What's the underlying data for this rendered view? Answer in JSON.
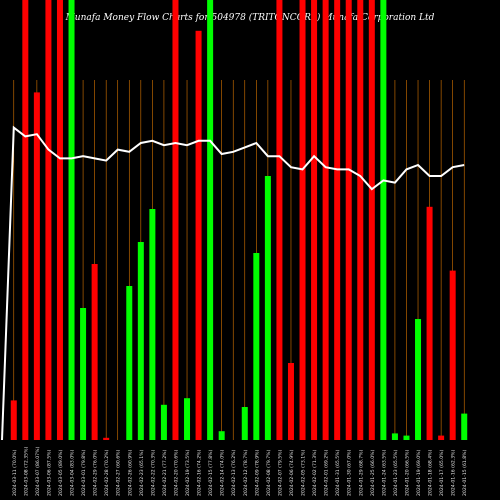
{
  "title": "Munafa Money Flow Charts for 504978 (TRITONCORP) Munafa Corporation Ltd",
  "colors": {
    "background": "#000000",
    "up": "#00ff00",
    "down": "#ff0000",
    "grid": "#ff8c00",
    "flow_line": "#ffffff"
  },
  "chart_data": {
    "type": "bar",
    "title": "Munafa Money Flow Charts for 504978 (TRITONCORP) Munafa Corporation Ltd",
    "ylim": [
      0,
      100
    ],
    "bars": [
      {
        "label": "2024-03-11 (70.0%)",
        "value": 9,
        "color": "red",
        "band": false
      },
      {
        "label": "2024-03-08 (72.35%)",
        "value": 100,
        "color": "red",
        "band": true
      },
      {
        "label": "2024-03-07 (86.07%)",
        "value": 79,
        "color": "red",
        "band": false
      },
      {
        "label": "2024-03-06 (87.5%)",
        "value": 100,
        "color": "red",
        "band": true
      },
      {
        "label": "2024-03-05 (89.0%)",
        "value": 100,
        "color": "red",
        "band": true
      },
      {
        "label": "2024-03-04 (83.0%)",
        "value": 100,
        "color": "green",
        "band": true
      },
      {
        "label": "2024-03-01 (79.8%)",
        "value": 30,
        "color": "green",
        "band": false
      },
      {
        "label": "2024-02-29 (76.0%)",
        "value": 40,
        "color": "red",
        "band": false
      },
      {
        "label": "2024-02-28 (70.2%)",
        "value": 0.5,
        "color": "red",
        "band": false
      },
      {
        "label": "2024-02-27 (60.6%)",
        "value": 0,
        "color": "red",
        "band": false
      },
      {
        "label": "2024-02-26 (60.9%)",
        "value": 35,
        "color": "green",
        "band": false
      },
      {
        "label": "2024-02-23 (65.1%)",
        "value": 45,
        "color": "green",
        "band": false
      },
      {
        "label": "2024-02-22 (70.3%)",
        "value": 52.5,
        "color": "green",
        "band": false
      },
      {
        "label": "2024-02-21 (77.2%)",
        "value": 8,
        "color": "green",
        "band": false
      },
      {
        "label": "2024-02-20 (70.6%)",
        "value": 100,
        "color": "red",
        "band": true
      },
      {
        "label": "2024-02-19 (73.5%)",
        "value": 9.5,
        "color": "green",
        "band": false
      },
      {
        "label": "2024-02-16 (74.2%)",
        "value": 93,
        "color": "red",
        "band": false
      },
      {
        "label": "2024-02-15 (77.8%)",
        "value": 100,
        "color": "green",
        "band": true
      },
      {
        "label": "2024-02-14 (74.0%)",
        "value": 2,
        "color": "green",
        "band": false
      },
      {
        "label": "2024-02-13 (76.2%)",
        "value": 0,
        "color": "red",
        "band": false
      },
      {
        "label": "2024-02-12 (78.7%)",
        "value": 7.5,
        "color": "green",
        "band": false
      },
      {
        "label": "2024-02-09 (78.9%)",
        "value": 42.5,
        "color": "green",
        "band": false
      },
      {
        "label": "2024-02-08 (79.7%)",
        "value": 60,
        "color": "green",
        "band": false
      },
      {
        "label": "2024-02-07 (79.5%)",
        "value": 100,
        "color": "red",
        "band": true
      },
      {
        "label": "2024-02-06 (74.9%)",
        "value": 17.5,
        "color": "red",
        "band": false
      },
      {
        "label": "2024-02-05 (73.1%)",
        "value": 100,
        "color": "red",
        "band": true
      },
      {
        "label": "2024-02-02 (71.3%)",
        "value": 100,
        "color": "red",
        "band": true
      },
      {
        "label": "2024-02-01 (69.2%)",
        "value": 100,
        "color": "red",
        "band": true
      },
      {
        "label": "2024-01-31 (65.5%)",
        "value": 100,
        "color": "red",
        "band": true
      },
      {
        "label": "2024-01-30 (67.0%)",
        "value": 100,
        "color": "red",
        "band": true
      },
      {
        "label": "2024-01-29 (68.7%)",
        "value": 100,
        "color": "red",
        "band": true
      },
      {
        "label": "2024-01-25 (66.0%)",
        "value": 100,
        "color": "red",
        "band": true
      },
      {
        "label": "2024-01-24 (63.5%)",
        "value": 100,
        "color": "green",
        "band": true
      },
      {
        "label": "2024-01-23 (65.5%)",
        "value": 1.5,
        "color": "green",
        "band": false
      },
      {
        "label": "2024-01-20 (66.5%)",
        "value": 1,
        "color": "green",
        "band": false
      },
      {
        "label": "2024-01-19 (69.0%)",
        "value": 27.5,
        "color": "green",
        "band": false
      },
      {
        "label": "2024-01-18 (68.4%)",
        "value": 53,
        "color": "red",
        "band": false
      },
      {
        "label": "2024-01-17 (65.0%)",
        "value": 1,
        "color": "red",
        "band": false
      },
      {
        "label": "2024-01-16 (62.3%)",
        "value": 38.5,
        "color": "red",
        "band": false
      },
      {
        "label": "2024-01-15 (61.8%)",
        "value": 6,
        "color": "green",
        "band": false
      }
    ],
    "flow_line": [
      71,
      69,
      69.5,
      66,
      64,
      64,
      64.5,
      64,
      63.5,
      66,
      65.5,
      67.5,
      68,
      67,
      67.5,
      67,
      68,
      68,
      65,
      65.5,
      66.5,
      67.5,
      64.5,
      64.5,
      62,
      61.5,
      64.5,
      62,
      61.5,
      61.5,
      60,
      57,
      59,
      58.5,
      61.5,
      62.5,
      60,
      60,
      62,
      62.5
    ]
  }
}
